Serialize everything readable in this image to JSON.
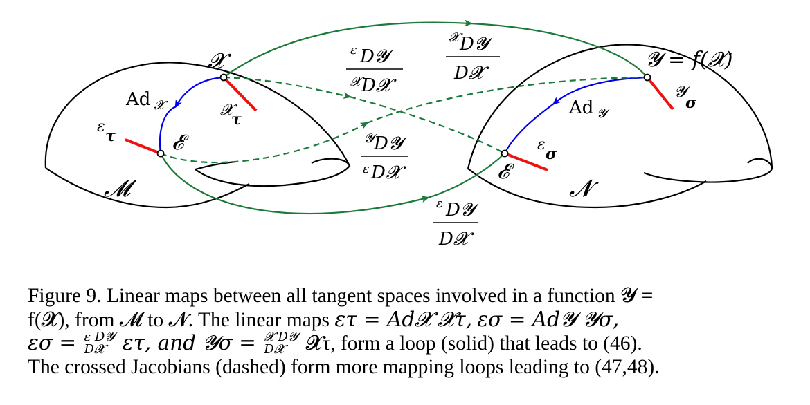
{
  "diagram": {
    "colors": {
      "manifold_outline": "#000000",
      "adjoint_arrow": "#0000ee",
      "jacobian_arrow": "#1a7a3a",
      "tangent_vector": "#ee1111"
    },
    "labels": {
      "manifold_M": "𝓜",
      "manifold_N": "𝓝",
      "point_X": "𝓧",
      "point_E_left": "𝓔",
      "point_Y_eq": "𝓨 = f(𝓧)",
      "point_E_right": "𝓔",
      "tau_identity": "ε",
      "tau_identity_sub": "τ",
      "tau_X": "𝓧",
      "tau_X_sub": "τ",
      "sigma_identity": "ε",
      "sigma_identity_sub": "σ",
      "sigma_Y": "𝓨",
      "sigma_Y_sub": "σ",
      "ad_X": "Ad",
      "ad_X_sub": "𝓧",
      "ad_Y": "Ad",
      "ad_Y_sub": "𝓨"
    },
    "jacobians": {
      "top_solid": {
        "num_pre": "𝓧",
        "num": "D𝓨",
        "den": "D𝓧"
      },
      "dashed_upper": {
        "num_pre": "ε",
        "num": "D𝓨",
        "den_pre": "𝓧",
        "den": "D𝓧"
      },
      "dashed_lower": {
        "num_pre": "𝓨",
        "num": "D𝓨",
        "den_pre": "ε",
        "den": "D𝓧"
      },
      "bottom_solid": {
        "num_pre": "ε",
        "num": "D𝓨",
        "den": "D𝓧"
      }
    }
  },
  "caption": {
    "line1": "Figure 9.  Linear maps between all tangent spaces involved in a function 𝓨 =",
    "line2_a": "f(𝓧), from 𝓜 to 𝓝. The linear maps ",
    "line2_eq1": "ετ = Ad𝓧 𝓧τ,",
    "line2_eq2": "εσ = Ad𝓨 𝓨σ,",
    "line3_a": "εσ =",
    "line3_frac1_num": "ε D𝓨",
    "line3_frac1_den": "D𝓧",
    "line3_b": "ετ, and 𝓨σ =",
    "line3_frac2_num": "𝓧 D𝓨",
    "line3_frac2_den": "D𝓧",
    "line3_c": "𝓧τ, form a loop (solid) that leads to (46).",
    "line4": "The crossed Jacobians (dashed) form more mapping loops leading to (47,48)."
  }
}
